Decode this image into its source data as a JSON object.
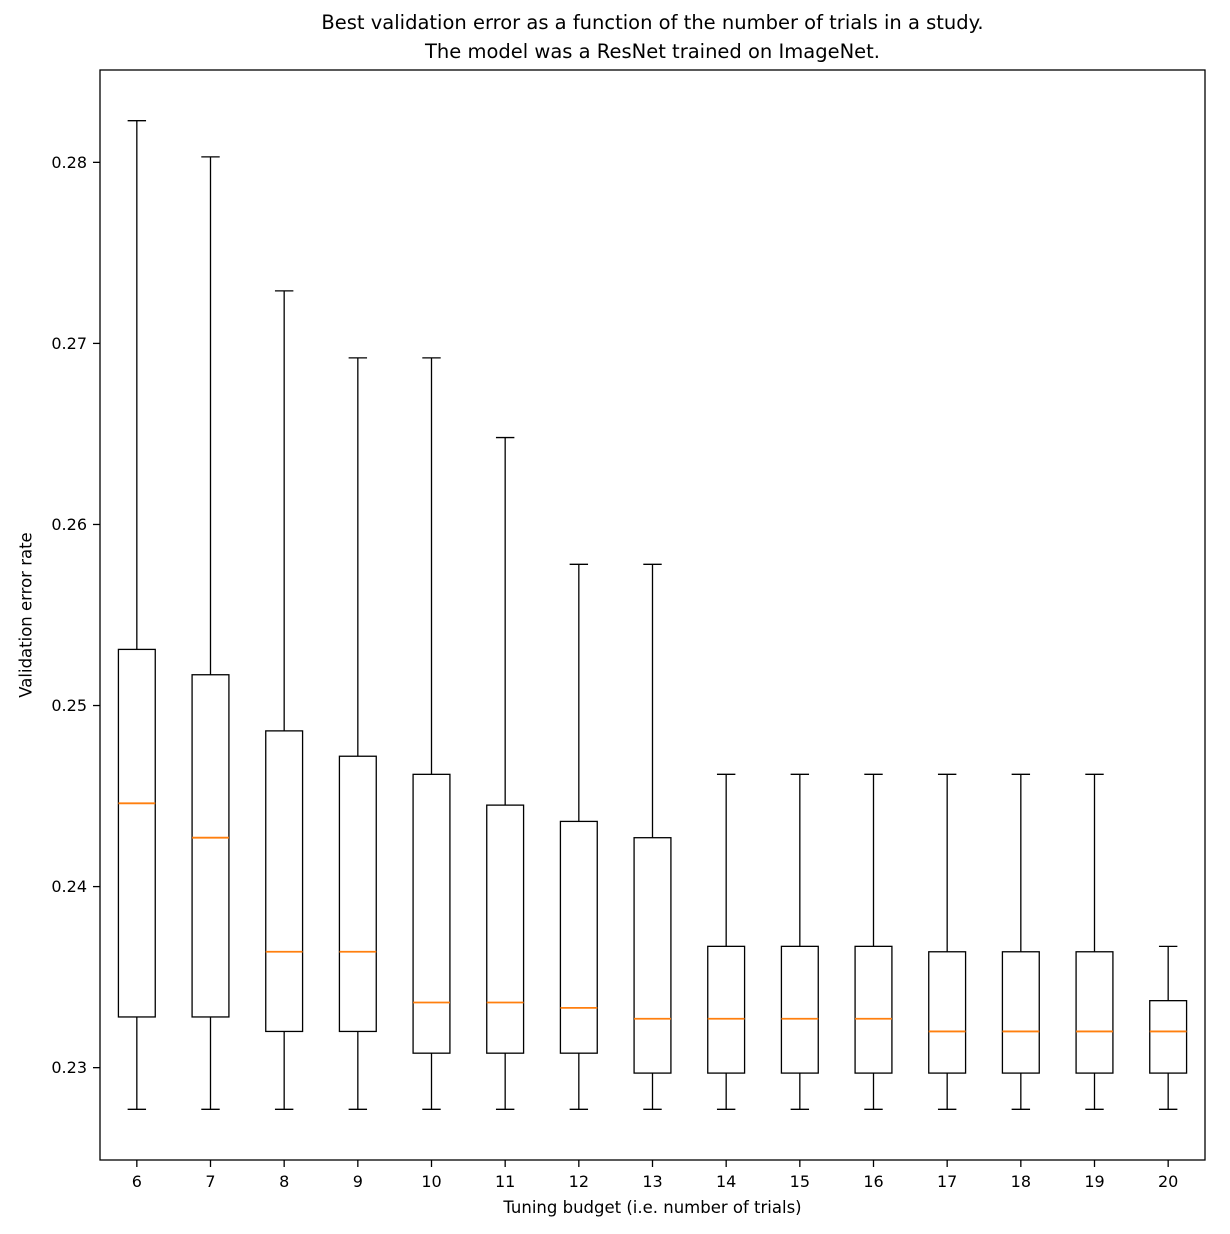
{
  "figure": {
    "background": "#ffffff"
  },
  "chart_data": {
    "type": "boxplot",
    "title_line1": "Best validation error as a function of the number of trials in a study.",
    "title_line2": "The model was a ResNet trained on ImageNet.",
    "xlabel": "Tuning budget (i.e. number of trials)",
    "ylabel": "Validation error rate",
    "categories": [
      6,
      7,
      8,
      9,
      10,
      11,
      12,
      13,
      14,
      15,
      16,
      17,
      18,
      19,
      20
    ],
    "yticks": [
      0.23,
      0.24,
      0.25,
      0.26,
      0.27,
      0.28
    ],
    "ylim": [
      0.2249,
      0.2851
    ],
    "grid": false,
    "legend": "none",
    "line_color": "#000000",
    "median_color": "#ff7f0e",
    "boxes": [
      {
        "trials": 6,
        "whislo": 0.2277,
        "q1": 0.2328,
        "med": 0.2446,
        "q3": 0.2531,
        "whishi": 0.2823
      },
      {
        "trials": 7,
        "whislo": 0.2277,
        "q1": 0.2328,
        "med": 0.2427,
        "q3": 0.2517,
        "whishi": 0.2803
      },
      {
        "trials": 8,
        "whislo": 0.2277,
        "q1": 0.232,
        "med": 0.2364,
        "q3": 0.2486,
        "whishi": 0.2729
      },
      {
        "trials": 9,
        "whislo": 0.2277,
        "q1": 0.232,
        "med": 0.2364,
        "q3": 0.2472,
        "whishi": 0.2692
      },
      {
        "trials": 10,
        "whislo": 0.2277,
        "q1": 0.2308,
        "med": 0.2336,
        "q3": 0.2462,
        "whishi": 0.2692
      },
      {
        "trials": 11,
        "whislo": 0.2277,
        "q1": 0.2308,
        "med": 0.2336,
        "q3": 0.2445,
        "whishi": 0.2648
      },
      {
        "trials": 12,
        "whislo": 0.2277,
        "q1": 0.2308,
        "med": 0.2333,
        "q3": 0.2436,
        "whishi": 0.2578
      },
      {
        "trials": 13,
        "whislo": 0.2277,
        "q1": 0.2297,
        "med": 0.2327,
        "q3": 0.2427,
        "whishi": 0.2578
      },
      {
        "trials": 14,
        "whislo": 0.2277,
        "q1": 0.2297,
        "med": 0.2327,
        "q3": 0.2367,
        "whishi": 0.2462
      },
      {
        "trials": 15,
        "whislo": 0.2277,
        "q1": 0.2297,
        "med": 0.2327,
        "q3": 0.2367,
        "whishi": 0.2462
      },
      {
        "trials": 16,
        "whislo": 0.2277,
        "q1": 0.2297,
        "med": 0.2327,
        "q3": 0.2367,
        "whishi": 0.2462
      },
      {
        "trials": 17,
        "whislo": 0.2277,
        "q1": 0.2297,
        "med": 0.232,
        "q3": 0.2364,
        "whishi": 0.2462
      },
      {
        "trials": 18,
        "whislo": 0.2277,
        "q1": 0.2297,
        "med": 0.232,
        "q3": 0.2364,
        "whishi": 0.2462
      },
      {
        "trials": 19,
        "whislo": 0.2277,
        "q1": 0.2297,
        "med": 0.232,
        "q3": 0.2364,
        "whishi": 0.2462
      },
      {
        "trials": 20,
        "whislo": 0.2277,
        "q1": 0.2297,
        "med": 0.232,
        "q3": 0.2337,
        "whishi": 0.2367
      }
    ]
  }
}
